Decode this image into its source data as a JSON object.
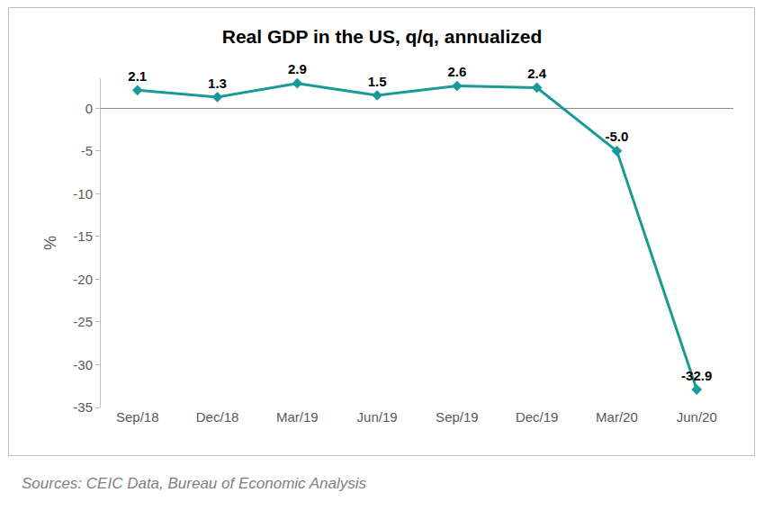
{
  "chart_data": {
    "type": "line",
    "title": "Real GDP in the US, q/q, annualized",
    "y_label": "%",
    "categories": [
      "Sep/18",
      "Dec/18",
      "Mar/19",
      "Jun/19",
      "Sep/19",
      "Dec/19",
      "Mar/20",
      "Jun/20"
    ],
    "values": [
      2.1,
      1.3,
      2.9,
      1.5,
      2.6,
      2.4,
      -5.0,
      -32.9
    ],
    "value_labels": [
      "2.1",
      "1.3",
      "2.9",
      "1.5",
      "2.6",
      "2.4",
      "-5.0",
      "-32.9"
    ],
    "color": "#1a9a96",
    "marker": "diamond",
    "data_labels": true,
    "grid": false,
    "ylim": [
      -35,
      3.5
    ],
    "yticks": [
      -35,
      -30,
      -25,
      -20,
      -15,
      -10,
      -5,
      0
    ],
    "annotations": [
      {
        "text": "Sources: CEIC Data, Bureau of Economic Analysis"
      }
    ]
  }
}
